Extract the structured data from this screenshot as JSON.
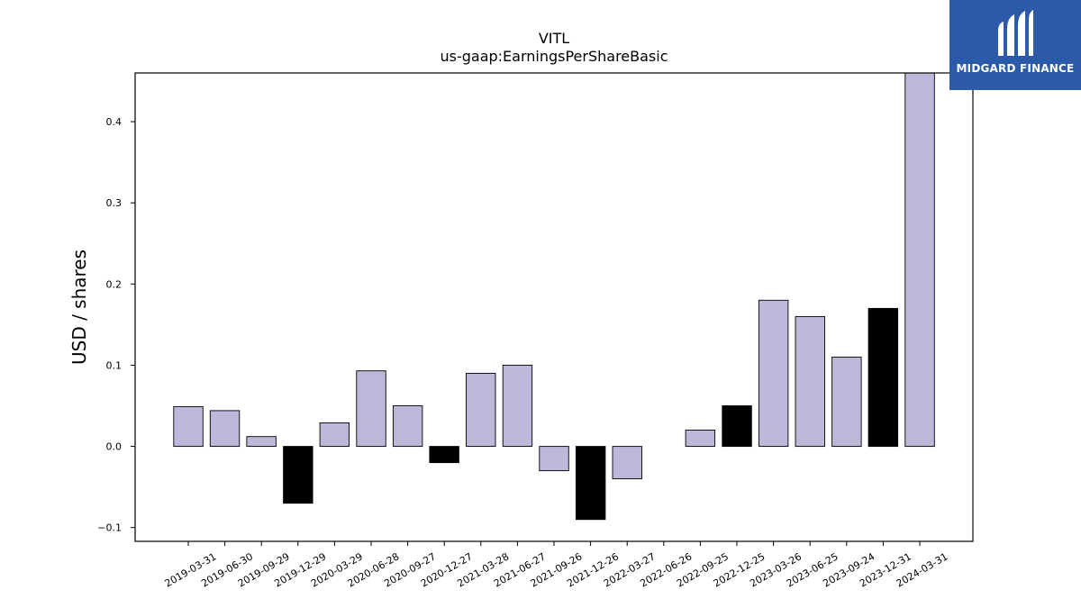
{
  "brand": {
    "name": "MIDGARD FINANCE",
    "icon": "midgard-logo-icon",
    "background": "#2b5aa8"
  },
  "chart_data": {
    "type": "bar",
    "title": "VITL",
    "subtitle": "us-gaap:EarningsPerShareBasic",
    "xlabel": "",
    "ylabel": "USD / shares",
    "ylim": [
      -0.117,
      0.46
    ],
    "yticks": [
      -0.1,
      0.0,
      0.1,
      0.2,
      0.3,
      0.4
    ],
    "ytick_labels": [
      "−0.1",
      "0.0",
      "0.1",
      "0.2",
      "0.3",
      "0.4"
    ],
    "grid": false,
    "legend": "none",
    "colors": {
      "bar": "#bcb8da",
      "bar_q4": "#000000",
      "edge": "#000000"
    },
    "categories": [
      "2019-03-31",
      "2019-06-30",
      "2019-09-29",
      "2019-12-29",
      "2020-03-29",
      "2020-06-28",
      "2020-09-27",
      "2020-12-27",
      "2021-03-28",
      "2021-06-27",
      "2021-09-26",
      "2021-12-26",
      "2022-03-27",
      "2022-06-26",
      "2022-09-25",
      "2022-12-25",
      "2023-03-26",
      "2023-06-25",
      "2023-09-24",
      "2023-12-31",
      "2024-03-31"
    ],
    "values": [
      0.049,
      0.044,
      0.012,
      -0.07,
      0.029,
      0.093,
      0.05,
      -0.02,
      0.09,
      0.1,
      -0.03,
      -0.09,
      -0.04,
      0.0,
      0.02,
      0.05,
      0.18,
      0.16,
      0.11,
      0.17,
      0.48
    ],
    "highlight": [
      false,
      false,
      false,
      true,
      false,
      false,
      false,
      true,
      false,
      false,
      false,
      true,
      false,
      false,
      false,
      true,
      false,
      false,
      false,
      true,
      false
    ]
  }
}
